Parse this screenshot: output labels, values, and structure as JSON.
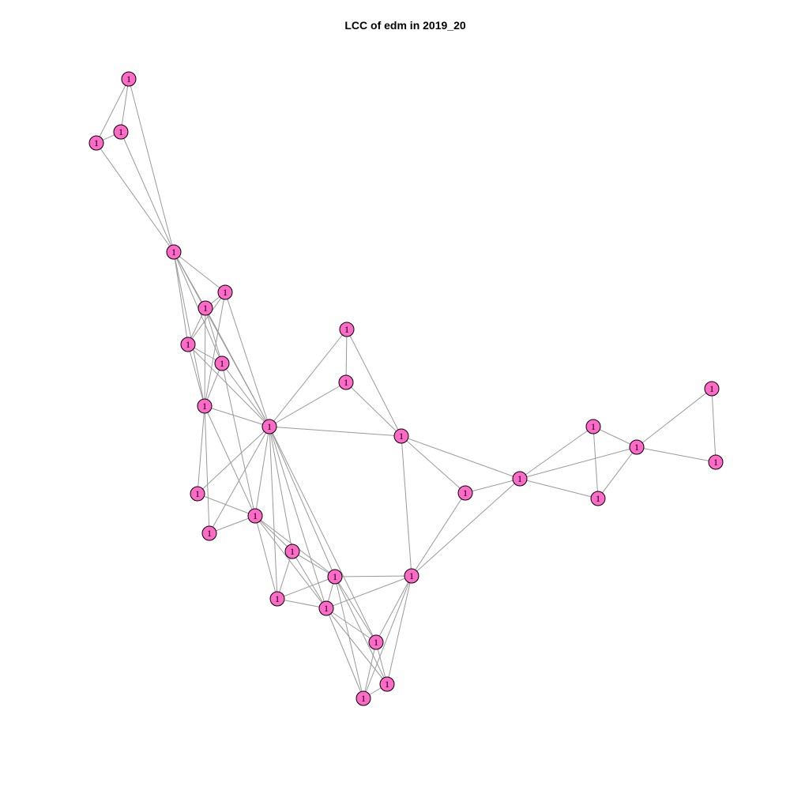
{
  "title": "LCC of edm in 2019_20",
  "colors": {
    "node_fill": "#ff69c8",
    "node_stroke": "#000000",
    "edge": "#9a9a9a"
  },
  "nodes": [
    {
      "id": "n1",
      "label": "1"
    },
    {
      "id": "n2",
      "label": "1"
    },
    {
      "id": "n3",
      "label": "1"
    },
    {
      "id": "n4",
      "label": "1"
    },
    {
      "id": "n5",
      "label": "1"
    },
    {
      "id": "n6",
      "label": "1"
    },
    {
      "id": "n7",
      "label": "1"
    },
    {
      "id": "n8",
      "label": "1"
    },
    {
      "id": "n9",
      "label": "1"
    },
    {
      "id": "n10",
      "label": "1"
    },
    {
      "id": "n11",
      "label": "1"
    },
    {
      "id": "n12",
      "label": "1"
    },
    {
      "id": "n13",
      "label": "1"
    },
    {
      "id": "n14",
      "label": "1"
    },
    {
      "id": "n15",
      "label": "1"
    },
    {
      "id": "n16",
      "label": "1"
    },
    {
      "id": "n17",
      "label": "1"
    },
    {
      "id": "n18",
      "label": "1"
    },
    {
      "id": "n19",
      "label": "1"
    },
    {
      "id": "n20",
      "label": "1"
    },
    {
      "id": "n21",
      "label": "1"
    },
    {
      "id": "n22",
      "label": "1"
    },
    {
      "id": "n23",
      "label": "1"
    },
    {
      "id": "n24",
      "label": "1"
    },
    {
      "id": "n25",
      "label": "1"
    },
    {
      "id": "n26",
      "label": "1"
    },
    {
      "id": "n27",
      "label": "1"
    },
    {
      "id": "n28",
      "label": "1"
    },
    {
      "id": "n29",
      "label": "1"
    },
    {
      "id": "n30",
      "label": "1"
    },
    {
      "id": "n31",
      "label": "1"
    },
    {
      "id": "n32",
      "label": "1"
    }
  ],
  "edges": [
    [
      "n1",
      "n2"
    ],
    [
      "n1",
      "n3"
    ],
    [
      "n2",
      "n3"
    ],
    [
      "n1",
      "n4"
    ],
    [
      "n2",
      "n4"
    ],
    [
      "n3",
      "n4"
    ],
    [
      "n4",
      "n5"
    ],
    [
      "n4",
      "n6"
    ],
    [
      "n4",
      "n7"
    ],
    [
      "n4",
      "n8"
    ],
    [
      "n4",
      "n9"
    ],
    [
      "n4",
      "n10"
    ],
    [
      "n5",
      "n6"
    ],
    [
      "n5",
      "n7"
    ],
    [
      "n5",
      "n9"
    ],
    [
      "n5",
      "n10"
    ],
    [
      "n6",
      "n7"
    ],
    [
      "n6",
      "n8"
    ],
    [
      "n6",
      "n9"
    ],
    [
      "n6",
      "n10"
    ],
    [
      "n7",
      "n8"
    ],
    [
      "n7",
      "n9"
    ],
    [
      "n7",
      "n10"
    ],
    [
      "n8",
      "n9"
    ],
    [
      "n8",
      "n10"
    ],
    [
      "n8",
      "n14"
    ],
    [
      "n9",
      "n10"
    ],
    [
      "n9",
      "n11"
    ],
    [
      "n9",
      "n14"
    ],
    [
      "n10",
      "n11"
    ],
    [
      "n10",
      "n12"
    ],
    [
      "n10",
      "n13"
    ],
    [
      "n11",
      "n12"
    ],
    [
      "n11",
      "n14"
    ],
    [
      "n11",
      "n15"
    ],
    [
      "n11",
      "n16"
    ],
    [
      "n11",
      "n17"
    ],
    [
      "n11",
      "n18"
    ],
    [
      "n11",
      "n19"
    ],
    [
      "n11",
      "n22"
    ],
    [
      "n12",
      "n13"
    ],
    [
      "n12",
      "n14"
    ],
    [
      "n13",
      "n14"
    ],
    [
      "n14",
      "n15"
    ],
    [
      "n14",
      "n16"
    ],
    [
      "n14",
      "n17"
    ],
    [
      "n14",
      "n18"
    ],
    [
      "n15",
      "n16"
    ],
    [
      "n15",
      "n17"
    ],
    [
      "n15",
      "n18"
    ],
    [
      "n16",
      "n17"
    ],
    [
      "n16",
      "n18"
    ],
    [
      "n16",
      "n20"
    ],
    [
      "n16",
      "n21"
    ],
    [
      "n16",
      "n22"
    ],
    [
      "n17",
      "n18"
    ],
    [
      "n17",
      "n19"
    ],
    [
      "n17",
      "n20"
    ],
    [
      "n17",
      "n21"
    ],
    [
      "n17",
      "n22"
    ],
    [
      "n18",
      "n19"
    ],
    [
      "n18",
      "n20"
    ],
    [
      "n18",
      "n21"
    ],
    [
      "n18",
      "n22"
    ],
    [
      "n19",
      "n20"
    ],
    [
      "n19",
      "n21"
    ],
    [
      "n19",
      "n22"
    ],
    [
      "n20",
      "n21"
    ],
    [
      "n20",
      "n22"
    ],
    [
      "n21",
      "n22"
    ],
    [
      "n11",
      "n23"
    ],
    [
      "n11",
      "n24"
    ],
    [
      "n23",
      "n24"
    ],
    [
      "n23",
      "n25"
    ],
    [
      "n24",
      "n25"
    ],
    [
      "n25",
      "n19"
    ],
    [
      "n25",
      "n26"
    ],
    [
      "n25",
      "n27"
    ],
    [
      "n26",
      "n19"
    ],
    [
      "n26",
      "n27"
    ],
    [
      "n27",
      "n19"
    ],
    [
      "n27",
      "n28"
    ],
    [
      "n27",
      "n29"
    ],
    [
      "n27",
      "n30"
    ],
    [
      "n28",
      "n29"
    ],
    [
      "n28",
      "n30"
    ],
    [
      "n29",
      "n30"
    ],
    [
      "n29",
      "n31"
    ],
    [
      "n29",
      "n32"
    ],
    [
      "n31",
      "n32"
    ]
  ]
}
